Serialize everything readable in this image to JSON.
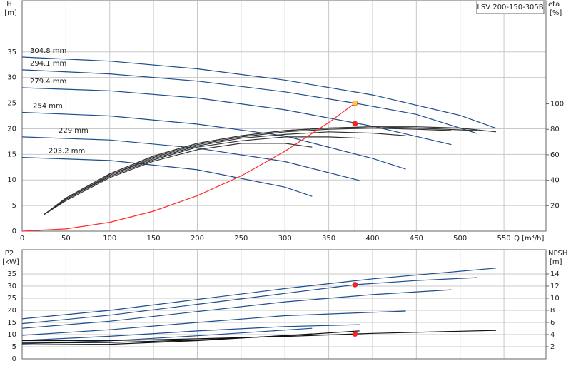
{
  "model": "LSV 200-150-305B",
  "chart_data": [
    {
      "type": "line",
      "y_label": "H",
      "y_unit": "[m]",
      "y2_label": "eta",
      "y2_unit": "[%]",
      "x_label": "Q [m³/h]",
      "xlim": [
        0,
        598
      ],
      "ylim": [
        0,
        45
      ],
      "y2lim": [
        0,
        181
      ],
      "xticks": [
        0,
        50,
        100,
        150,
        200,
        250,
        300,
        350,
        400,
        450,
        500,
        550
      ],
      "yticks": [
        0,
        5,
        10,
        15,
        20,
        25,
        30,
        35
      ],
      "y2ticks": [
        20,
        40,
        60,
        80,
        100
      ],
      "grid": true,
      "series": [
        {
          "name": "304.8 mm",
          "color": "#1f4e8c",
          "x": [
            0,
            100,
            200,
            300,
            400,
            500,
            541
          ],
          "values": [
            34.0,
            33.2,
            31.7,
            29.5,
            26.6,
            22.6,
            20.1
          ]
        },
        {
          "name": "294.1 mm",
          "color": "#1f4e8c",
          "x": [
            0,
            100,
            200,
            300,
            380,
            450,
            519
          ],
          "values": [
            31.5,
            30.7,
            29.3,
            27.2,
            25.0,
            22.8,
            19.1
          ]
        },
        {
          "name": "279.4 mm",
          "color": "#1f4e8c",
          "x": [
            0,
            100,
            200,
            300,
            400,
            490
          ],
          "values": [
            28.0,
            27.4,
            26.0,
            23.7,
            20.5,
            16.9
          ]
        },
        {
          "name": "254 mm",
          "color": "#1f4e8c",
          "x": [
            0,
            100,
            200,
            300,
            400,
            438
          ],
          "values": [
            23.2,
            22.5,
            20.9,
            18.6,
            14.2,
            12.1
          ]
        },
        {
          "name": "229 mm",
          "color": "#1f4e8c",
          "x": [
            0,
            100,
            200,
            300,
            385
          ],
          "values": [
            18.4,
            17.8,
            16.2,
            13.6,
            9.9
          ]
        },
        {
          "name": "203.2 mm",
          "color": "#1f4e8c",
          "x": [
            0,
            100,
            200,
            300,
            331
          ],
          "values": [
            14.4,
            13.8,
            12.0,
            8.6,
            6.8
          ]
        },
        {
          "axis": "y2",
          "color": "#333333",
          "x": [
            25,
            50,
            100,
            150,
            200,
            250,
            300,
            350,
            400,
            450,
            500,
            541
          ],
          "values": [
            13,
            26,
            45,
            59,
            69,
            75,
            79,
            81,
            82,
            82,
            81,
            78
          ]
        },
        {
          "axis": "y2",
          "color": "#333333",
          "x": [
            25,
            50,
            100,
            150,
            200,
            250,
            300,
            350,
            400,
            450,
            519
          ],
          "values": [
            13,
            26,
            45,
            59,
            69,
            75,
            79,
            81,
            82,
            81,
            79
          ]
        },
        {
          "axis": "y2",
          "color": "#333333",
          "x": [
            25,
            50,
            100,
            150,
            200,
            250,
            300,
            350,
            400,
            450,
            490
          ],
          "values": [
            13,
            25,
            44,
            58,
            68,
            74,
            78,
            80,
            81,
            80,
            79
          ]
        },
        {
          "axis": "y2",
          "color": "#333333",
          "x": [
            25,
            50,
            100,
            150,
            200,
            250,
            300,
            350,
            400,
            438
          ],
          "values": [
            13,
            25,
            44,
            57,
            67,
            73,
            76,
            78,
            77,
            75
          ]
        },
        {
          "axis": "y2",
          "color": "#333333",
          "x": [
            25,
            50,
            100,
            150,
            200,
            250,
            300,
            350,
            385
          ],
          "values": [
            13,
            25,
            43,
            56,
            66,
            71,
            74,
            74,
            73
          ]
        },
        {
          "axis": "y2",
          "color": "#333333",
          "x": [
            25,
            50,
            100,
            150,
            200,
            250,
            300,
            331
          ],
          "values": [
            13,
            24,
            42,
            55,
            64,
            69,
            69,
            66
          ]
        },
        {
          "color": "#ff2a2a",
          "x": [
            0,
            50,
            100,
            150,
            200,
            250,
            300,
            350,
            380
          ],
          "values": [
            0,
            0.43,
            1.73,
            3.9,
            6.93,
            10.8,
            15.6,
            21.2,
            25
          ]
        }
      ],
      "markers": [
        {
          "x": 380,
          "y": 25,
          "color": "#ffcc33"
        },
        {
          "x": 380,
          "y": 84.4,
          "axis": "y2",
          "color": "#ff2020"
        }
      ]
    },
    {
      "type": "line",
      "y_label": "P2",
      "y_unit": "[kW]",
      "y2_label": "NPSH",
      "y2_unit": "[m]",
      "xlim": [
        0,
        598
      ],
      "ylim": [
        0,
        45
      ],
      "y2lim": [
        0,
        18
      ],
      "xticks": [
        0,
        50,
        100,
        150,
        200,
        250,
        300,
        350,
        400,
        450,
        500,
        550
      ],
      "yticks": [
        0,
        5,
        10,
        15,
        20,
        25,
        30,
        35
      ],
      "y2ticks": [
        2,
        4,
        6,
        8,
        10,
        12,
        14
      ],
      "grid": true,
      "series": [
        {
          "color": "#1f4e8c",
          "x": [
            0,
            100,
            200,
            300,
            400,
            541
          ],
          "values": [
            16.5,
            20,
            24.5,
            29,
            33,
            37.4
          ]
        },
        {
          "color": "#1f4e8c",
          "x": [
            0,
            100,
            200,
            300,
            380,
            450,
            519
          ],
          "values": [
            14.5,
            18,
            22.5,
            27,
            30.6,
            32.3,
            33.5
          ]
        },
        {
          "color": "#1f4e8c",
          "x": [
            0,
            100,
            200,
            300,
            400,
            490
          ],
          "values": [
            12.6,
            15.5,
            19.5,
            23.5,
            26.5,
            28.5
          ]
        },
        {
          "color": "#1f4e8c",
          "x": [
            0,
            100,
            200,
            300,
            438
          ],
          "values": [
            9.7,
            12,
            15,
            17.8,
            19.7
          ]
        },
        {
          "color": "#1f4e8c",
          "x": [
            0,
            100,
            200,
            300,
            385
          ],
          "values": [
            7.6,
            9.3,
            11.5,
            13.3,
            14.1
          ]
        },
        {
          "color": "#1f4e8c",
          "x": [
            0,
            100,
            200,
            331
          ],
          "values": [
            6.2,
            7.4,
            9.5,
            12.6
          ]
        },
        {
          "axis": "y2",
          "color": "#111111",
          "x": [
            0,
            100,
            200,
            300,
            400,
            541
          ],
          "values": [
            3.0,
            3.0,
            3.3,
            3.7,
            4.2,
            4.7
          ]
        },
        {
          "axis": "y2",
          "color": "#111111",
          "x": [
            0,
            100,
            200,
            300,
            385
          ],
          "values": [
            2.6,
            2.7,
            3.1,
            3.8,
            4.6
          ]
        },
        {
          "axis": "y2",
          "color": "#111111",
          "x": [
            0,
            100,
            200,
            331
          ],
          "values": [
            2.3,
            2.4,
            3.0,
            4.1
          ]
        }
      ],
      "markers": [
        {
          "x": 380,
          "y": 30.6,
          "color": "#ff2020"
        },
        {
          "x": 380,
          "y": 4.1,
          "axis": "y2",
          "color": "#ff2020"
        }
      ]
    }
  ]
}
